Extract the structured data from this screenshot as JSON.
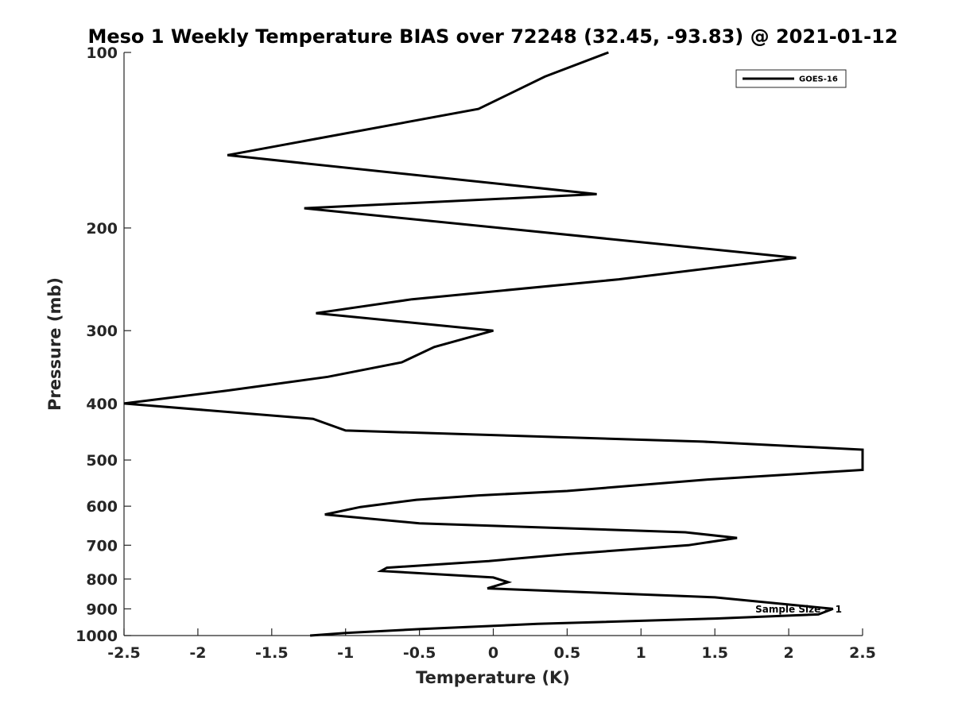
{
  "chart_data": {
    "type": "line",
    "title": "Meso 1 Weekly Temperature BIAS over 72248 (32.45, -93.83) @ 2021-01-12",
    "xlabel": "Temperature (K)",
    "ylabel": "Pressure (mb)",
    "xlim": [
      -2.5,
      2.5
    ],
    "ylim": [
      100,
      1000
    ],
    "y_scale": "log",
    "y_reversed": true,
    "x_ticks": [
      "-2.5",
      "-2",
      "-1.5",
      "-1",
      "-0.5",
      "0",
      "0.5",
      "1",
      "1.5",
      "2",
      "2.5"
    ],
    "y_ticks": [
      "100",
      "200",
      "300",
      "400",
      "500",
      "600",
      "700",
      "800",
      "900",
      "1000"
    ],
    "grid": false,
    "legend_position": "top-right",
    "line_color": "#000000",
    "series": [
      {
        "name": "GOES-16",
        "points": [
          [
            0.78,
            100
          ],
          [
            0.35,
            110
          ],
          [
            -0.1,
            125
          ],
          [
            -1.8,
            150
          ],
          [
            0.7,
            175
          ],
          [
            -1.28,
            185
          ],
          [
            0.05,
            200
          ],
          [
            2.05,
            225
          ],
          [
            0.85,
            245
          ],
          [
            -0.55,
            265
          ],
          [
            -1.2,
            280
          ],
          [
            0.0,
            300
          ],
          [
            -0.4,
            320
          ],
          [
            -0.62,
            340
          ],
          [
            -1.12,
            360
          ],
          [
            -1.8,
            380
          ],
          [
            -2.5,
            400
          ],
          [
            -1.22,
            425
          ],
          [
            -1.0,
            445
          ],
          [
            1.42,
            465
          ],
          [
            2.5,
            480
          ],
          [
            2.5,
            520
          ],
          [
            1.45,
            540
          ],
          [
            0.5,
            565
          ],
          [
            -0.1,
            575
          ],
          [
            -0.52,
            585
          ],
          [
            -0.9,
            602
          ],
          [
            -1.14,
            620
          ],
          [
            -0.5,
            642
          ],
          [
            1.3,
            665
          ],
          [
            1.65,
            680
          ],
          [
            1.32,
            700
          ],
          [
            0.5,
            725
          ],
          [
            -0.03,
            745
          ],
          [
            -0.72,
            765
          ],
          [
            -0.76,
            775
          ],
          [
            0.0,
            795
          ],
          [
            0.1,
            810
          ],
          [
            -0.04,
            830
          ],
          [
            1.5,
            860
          ],
          [
            2.3,
            900
          ],
          [
            2.2,
            920
          ],
          [
            1.5,
            935
          ],
          [
            0.3,
            955
          ],
          [
            -0.5,
            975
          ],
          [
            -1.0,
            990
          ],
          [
            -1.24,
            1000
          ]
        ]
      }
    ],
    "annotations": [
      "Sample Size = 1"
    ]
  }
}
